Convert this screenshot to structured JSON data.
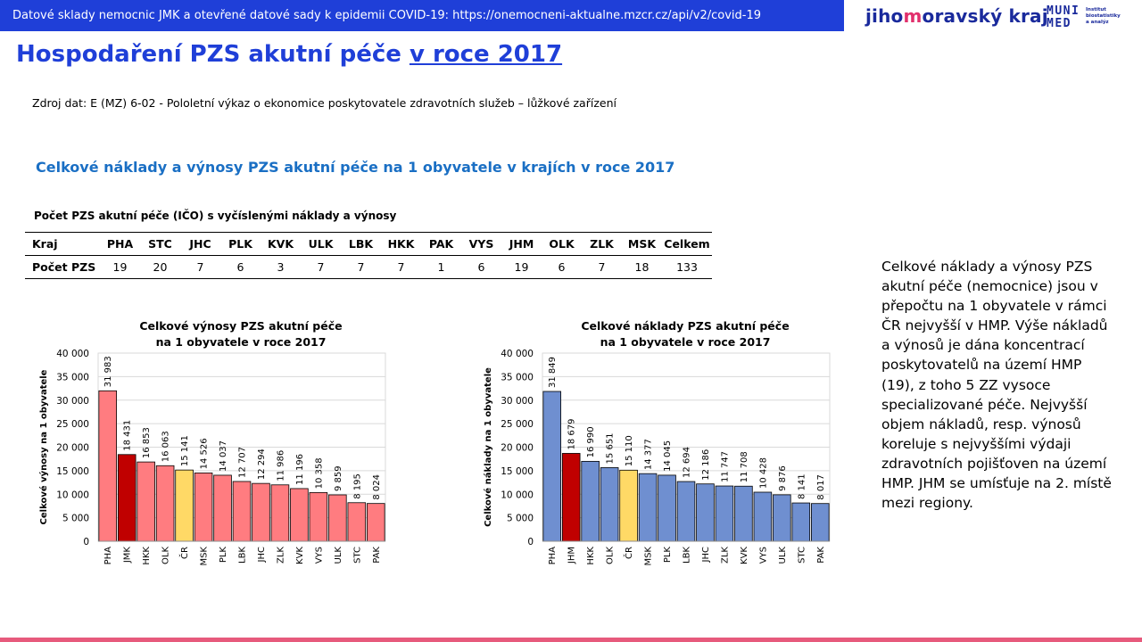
{
  "banner": "Datové sklady nemocnic JMK a otevřené datové sady k epidemii COVID-19: https://onemocneni-aktualne.mzcr.cz/api/v2/covid-19",
  "logos": {
    "jmk_pre": "jiho",
    "jmk_hl": "m",
    "jmk_post": "oravský kraj",
    "muni_top": "MUNI",
    "muni_bottom": "MED",
    "institute_1": "Institut",
    "institute_2": "biostatistiky",
    "institute_3": "a analýz"
  },
  "title": {
    "main": "Hospodaření PZS akutní péče ",
    "underlined": "v roce 2017"
  },
  "source": "Zdroj dat: E (MZ) 6-02 - Pololetní výkaz o ekonomice  poskytovatele zdravotních  služeb – lůžkové zařízení",
  "subtitle": "Celkové náklady  a výnosy PZS akutní péče na 1 obyvatele v krajích v roce 2017",
  "table": {
    "caption": "Počet PZS akutní péče (IČO) s vyčíslenými náklady a výnosy",
    "row1_label": "Kraj",
    "row2_label": "Počet PZS",
    "columns": [
      "PHA",
      "STC",
      "JHC",
      "PLK",
      "KVK",
      "ULK",
      "LBK",
      "HKK",
      "PAK",
      "VYS",
      "JHM",
      "OLK",
      "ZLK",
      "MSK",
      "Celkem"
    ],
    "values": [
      "19",
      "20",
      "7",
      "6",
      "3",
      "7",
      "7",
      "7",
      "1",
      "6",
      "19",
      "6",
      "7",
      "18",
      "133"
    ]
  },
  "side_text": "Celkové náklady a výnosy PZS akutní péče (nemocnice) jsou v přepočtu na 1 obyvatele v rámci ČR nejvyšší v HMP. Výše nákladů a výnosů je dána koncentrací poskytovatelů na území HMP (19), z toho 5 ZZ vysoce specializované péče. Nejvyšší objem nákladů, resp. výnosů koreluje s nejvyššími výdaji zdravotních pojišťoven na území HMP. JHM se umísťuje na 2. místě mezi regiony.",
  "chart_data": [
    {
      "type": "bar",
      "title": "Celkové výnosy PZS akutní péče na 1 obyvatele v roce 2017",
      "title_lines": [
        "Celkové výnosy PZS akutní péče",
        "na 1 obyvatele v roce 2017"
      ],
      "ylabel": "Celkové výnosy na 1 obyvatele",
      "ylim": [
        0,
        40000
      ],
      "yticks": [
        0,
        5000,
        10000,
        15000,
        20000,
        25000,
        30000,
        35000,
        40000
      ],
      "ytick_labels": [
        "0",
        "5 000",
        "10 000",
        "15 000",
        "20 000",
        "25 000",
        "30 000",
        "35 000",
        "40 000"
      ],
      "grid": true,
      "categories": [
        "PHA",
        "JMK",
        "HKK",
        "OLK",
        "ČR",
        "MSK",
        "PLK",
        "LBK",
        "JHC",
        "ZLK",
        "KVK",
        "VYS",
        "ULK",
        "STC",
        "PAK"
      ],
      "values": [
        31983,
        18431,
        16853,
        16063,
        15141,
        14526,
        14037,
        12707,
        12294,
        11986,
        11196,
        10358,
        9859,
        8195,
        8024
      ],
      "value_labels": [
        "31 983",
        "18 431",
        "16 853",
        "16 063",
        "15 141",
        "14 526",
        "14 037",
        "12 707",
        "12 294",
        "11 986",
        "11 196",
        "10 358",
        "9 859",
        "8 195",
        "8 024"
      ],
      "colors": [
        "#ff7c80",
        "#c00000",
        "#ff7c80",
        "#ff7c80",
        "#ffd966",
        "#ff7c80",
        "#ff7c80",
        "#ff7c80",
        "#ff7c80",
        "#ff7c80",
        "#ff7c80",
        "#ff7c80",
        "#ff7c80",
        "#ff7c80",
        "#ff7c80"
      ]
    },
    {
      "type": "bar",
      "title": "Celkové náklady PZS akutní péče na 1 obyvatele v roce 2017",
      "title_lines": [
        "Celkové náklady PZS akutní péče",
        "na 1 obyvatele v roce 2017"
      ],
      "ylabel": "Celkové náklady na 1 obyvatele",
      "ylim": [
        0,
        40000
      ],
      "yticks": [
        0,
        5000,
        10000,
        15000,
        20000,
        25000,
        30000,
        35000,
        40000
      ],
      "ytick_labels": [
        "0",
        "5 000",
        "10 000",
        "15 000",
        "20 000",
        "25 000",
        "30 000",
        "35 000",
        "40 000"
      ],
      "grid": true,
      "categories": [
        "PHA",
        "JHM",
        "HKK",
        "OLK",
        "ČR",
        "MSK",
        "PLK",
        "LBK",
        "JHC",
        "ZLK",
        "KVK",
        "VYS",
        "ULK",
        "STC",
        "PAK"
      ],
      "values": [
        31849,
        18679,
        16990,
        15651,
        15110,
        14377,
        14045,
        12694,
        12186,
        11747,
        11708,
        10428,
        9876,
        8141,
        8017
      ],
      "value_labels": [
        "31 849",
        "18 679",
        "16 990",
        "15 651",
        "15 110",
        "14 377",
        "14 045",
        "12 694",
        "12 186",
        "11 747",
        "11 708",
        "10 428",
        "9 876",
        "8 141",
        "8 017"
      ],
      "colors": [
        "#6f8fd0",
        "#c00000",
        "#6f8fd0",
        "#6f8fd0",
        "#ffd966",
        "#6f8fd0",
        "#6f8fd0",
        "#6f8fd0",
        "#6f8fd0",
        "#6f8fd0",
        "#6f8fd0",
        "#6f8fd0",
        "#6f8fd0",
        "#6f8fd0",
        "#6f8fd0"
      ]
    }
  ]
}
